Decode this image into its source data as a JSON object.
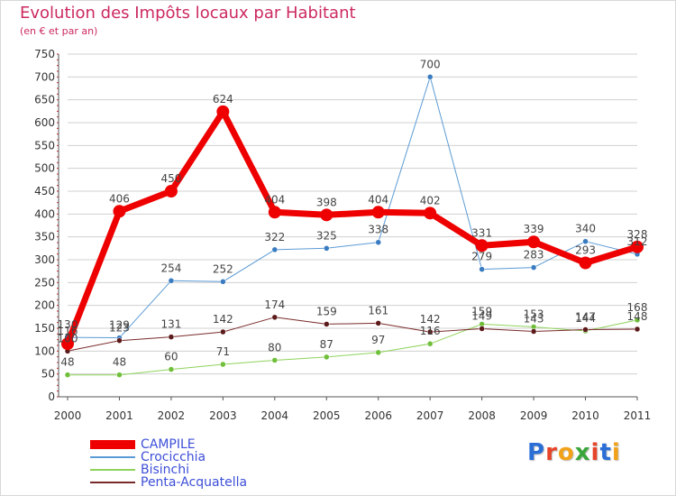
{
  "header": {
    "title": "Evolution des Impôts locaux par Habitant",
    "subtitle": "(en € et par an)"
  },
  "brand": {
    "text": "Proxiti"
  },
  "colors": {
    "title": "#cc2a5e",
    "legend_text": "#3d4fd8",
    "axis": "#555555",
    "grid": "#d0d0d0",
    "tick_marker": "#d02020"
  },
  "chart_data": {
    "type": "line",
    "title": "Evolution des Impôts locaux par Habitant",
    "subtitle": "(en € et par an)",
    "xlabel": "",
    "ylabel": "",
    "x": [
      "2000",
      "2001",
      "2002",
      "2003",
      "2004",
      "2005",
      "2006",
      "2007",
      "2008",
      "2009",
      "2010",
      "2011"
    ],
    "ylim": [
      0,
      750
    ],
    "yticks": [
      0,
      50,
      100,
      150,
      200,
      250,
      300,
      350,
      400,
      450,
      500,
      550,
      600,
      650,
      700,
      750
    ],
    "grid": "horizontal",
    "legend_position": "bottom-left",
    "series": [
      {
        "name": "Crocicchia",
        "color": "#5b9bd5",
        "point_color": "#3a7cc2",
        "width": 1,
        "marker": 3,
        "values": [
          130,
          129,
          254,
          252,
          322,
          325,
          338,
          700,
          279,
          283,
          340,
          312
        ]
      },
      {
        "name": "Bisinchi",
        "color": "#8ed35a",
        "point_color": "#6fbf3a",
        "width": 1,
        "marker": 3,
        "values": [
          48,
          48,
          60,
          71,
          80,
          87,
          97,
          116,
          159,
          153,
          144,
          168
        ]
      },
      {
        "name": "Penta-Acquatella",
        "color": "#7a2a2a",
        "point_color": "#5c1a1a",
        "width": 1,
        "marker": 3,
        "values": [
          100,
          123,
          131,
          142,
          174,
          159,
          161,
          142,
          149,
          143,
          147,
          148
        ]
      },
      {
        "name": "CAMPILE",
        "color": "#ee0000",
        "point_color": "#ee0000",
        "width": 7,
        "marker": 7,
        "values": [
          116,
          406,
          450,
          624,
          404,
          398,
          404,
          402,
          331,
          339,
          293,
          328
        ]
      }
    ],
    "legend_order": [
      "CAMPILE",
      "Crocicchia",
      "Bisinchi",
      "Penta-Acquatella"
    ]
  }
}
